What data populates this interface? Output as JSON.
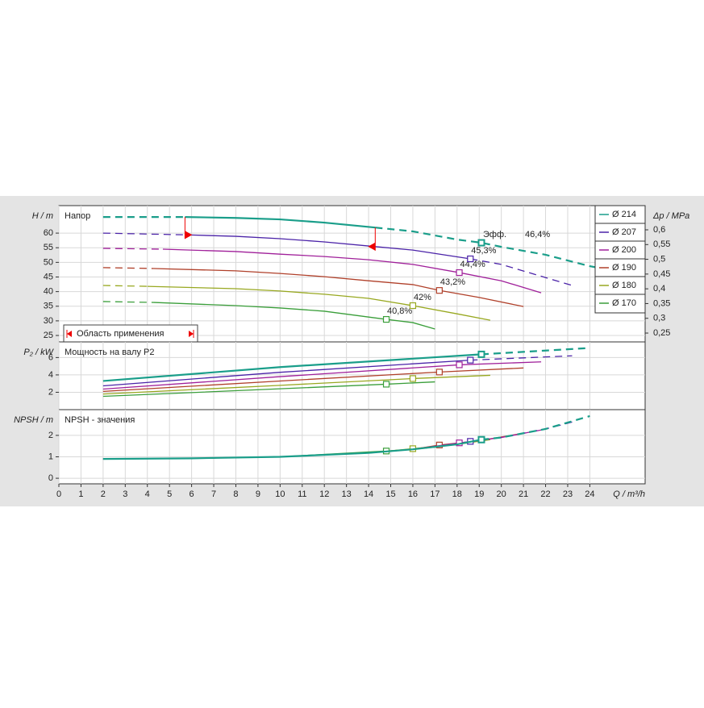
{
  "chart_data": [
    {
      "type": "line",
      "title": "Напор",
      "y_label": "H / m",
      "y2_label": "Δp / MPa",
      "range_label": "Область применения",
      "efficiency_prefix": "Эфф.",
      "xlim": [
        0,
        26.5
      ],
      "xticks": [
        0,
        1,
        2,
        3,
        4,
        5,
        6,
        7,
        8,
        9,
        10,
        11,
        12,
        13,
        14,
        15,
        16,
        17,
        18,
        19,
        20,
        21,
        22,
        23,
        24
      ],
      "ylim": [
        22.8,
        69.4
      ],
      "yticks": [
        25,
        30,
        35,
        40,
        45,
        50,
        55,
        60
      ],
      "y2lim": [
        0.22,
        0.682
      ],
      "y2ticks": [
        {
          "value": 0.25,
          "label": "0,25"
        },
        {
          "value": 0.3,
          "label": "0,3"
        },
        {
          "value": 0.35,
          "label": "0,35"
        },
        {
          "value": 0.4,
          "label": "0,4"
        },
        {
          "value": 0.45,
          "label": "0,45"
        },
        {
          "value": 0.5,
          "label": "0,5"
        },
        {
          "value": 0.55,
          "label": "0,55"
        },
        {
          "value": 0.6,
          "label": "0,6"
        }
      ],
      "grid": true,
      "legend": "top-right",
      "series": [
        {
          "name": "Ø 214",
          "color": "#1a9e8a",
          "x": [
            2,
            5.7,
            8,
            10,
            12,
            14.3,
            16,
            18,
            19.1,
            20,
            22,
            24,
            26.3
          ],
          "values": [
            65.5,
            65.5,
            65.2,
            64.7,
            63.6,
            61.9,
            60.6,
            57.8,
            56.7,
            55.3,
            52.6,
            48.7,
            45.4
          ],
          "solid_range": [
            5.7,
            14.3
          ],
          "duty_point": {
            "x": 19.1,
            "value": 56.7,
            "label": "46,4%"
          }
        },
        {
          "name": "Ø 207",
          "color": "#4b23a8",
          "x": [
            2,
            5.8,
            8,
            10,
            12,
            14,
            16,
            18.6,
            20,
            22,
            23.2
          ],
          "values": [
            60,
            59.4,
            58.9,
            58.1,
            57,
            55.6,
            54.2,
            51.2,
            49.3,
            44.8,
            42.1
          ],
          "solid_range": [
            5.8,
            18.6
          ],
          "duty_point": {
            "x": 18.6,
            "value": 51.2,
            "label": "45,3%"
          }
        },
        {
          "name": "Ø 200",
          "color": "#a0209a",
          "x": [
            2,
            4.7,
            8,
            10,
            12,
            14,
            16,
            18.1,
            20,
            21.8
          ],
          "values": [
            54.8,
            54.5,
            53.7,
            52.8,
            52,
            50.9,
            49.3,
            46.5,
            43.7,
            39.6
          ],
          "solid_range": [
            4.7,
            21.8
          ],
          "duty_point": {
            "x": 18.1,
            "value": 46.5,
            "label": "44,4%"
          }
        },
        {
          "name": "Ø 190",
          "color": "#b0402a",
          "x": [
            2,
            4.3,
            8,
            10,
            12,
            14,
            16,
            17.2,
            19,
            21
          ],
          "values": [
            48.2,
            47.9,
            47.1,
            46.2,
            45.1,
            43.7,
            42.4,
            40.4,
            38,
            34.9
          ],
          "solid_range": [
            4.3,
            21
          ],
          "duty_point": {
            "x": 17.2,
            "value": 40.4,
            "label": "43,2%"
          }
        },
        {
          "name": "Ø 180",
          "color": "#98a820",
          "x": [
            2,
            4,
            8,
            10,
            12,
            14,
            16,
            18,
            19.5
          ],
          "values": [
            42.1,
            41.8,
            41,
            40.2,
            39.1,
            37.7,
            35.2,
            32.4,
            30.2
          ],
          "solid_range": [
            4,
            19.5
          ],
          "duty_point": {
            "x": 16,
            "value": 35.2,
            "label": "42%"
          }
        },
        {
          "name": "Ø 170",
          "color": "#3a9e3a",
          "x": [
            2,
            4.3,
            8,
            10,
            12,
            14.8,
            16,
            17
          ],
          "values": [
            36.6,
            36.3,
            35.2,
            34.4,
            33.3,
            30.5,
            29.4,
            27.2
          ],
          "solid_range": [
            4.3,
            17
          ],
          "duty_point": {
            "x": 14.8,
            "value": 30.5,
            "label": "40,8%"
          }
        }
      ]
    },
    {
      "type": "line",
      "title": "Мощность на валу P2",
      "y_label": "P₂ / kW",
      "xlim": [
        0,
        26.5
      ],
      "xticks": [
        0,
        1,
        2,
        3,
        4,
        5,
        6,
        7,
        8,
        9,
        10,
        11,
        12,
        13,
        14,
        15,
        16,
        17,
        18,
        19,
        20,
        21,
        22,
        23,
        24
      ],
      "ylim": [
        0,
        7.8
      ],
      "yticks": [
        2,
        4,
        6
      ],
      "grid": true,
      "series": [
        {
          "color": "#1a9e8a",
          "x": [
            2,
            10,
            19.1,
            24
          ],
          "values": [
            3.3,
            4.9,
            6.37,
            7.1
          ],
          "solid_range": [
            2,
            19.1
          ],
          "duty_point": {
            "x": 19.1,
            "value": 6.37
          }
        },
        {
          "color": "#4b23a8",
          "x": [
            2,
            10,
            18.6,
            23.2
          ],
          "values": [
            2.74,
            4.3,
            5.7,
            6.2
          ],
          "solid_range": [
            2,
            18.6
          ],
          "duty_point": {
            "x": 18.6,
            "value": 5.7
          }
        },
        {
          "color": "#a0209a",
          "x": [
            2,
            10,
            18.1,
            21.8
          ],
          "values": [
            2.37,
            3.8,
            5.16,
            5.5
          ],
          "solid_range": [
            2,
            21.8
          ],
          "duty_point": {
            "x": 18.1,
            "value": 5.16
          }
        },
        {
          "color": "#b0402a",
          "x": [
            2,
            10,
            17.2,
            21
          ],
          "values": [
            2.1,
            3.3,
            4.33,
            4.8
          ],
          "solid_range": [
            2,
            21
          ],
          "duty_point": {
            "x": 17.2,
            "value": 4.33
          }
        },
        {
          "color": "#98a820",
          "x": [
            2,
            10,
            16,
            19.5
          ],
          "values": [
            1.8,
            2.8,
            3.58,
            3.95
          ],
          "solid_range": [
            2,
            19.5
          ],
          "duty_point": {
            "x": 16,
            "value": 3.58
          }
        },
        {
          "color": "#3a9e3a",
          "x": [
            2,
            10,
            14.8,
            17
          ],
          "values": [
            1.53,
            2.4,
            2.93,
            3.2
          ],
          "solid_range": [
            2,
            17
          ],
          "duty_point": {
            "x": 14.8,
            "value": 2.93
          }
        }
      ]
    },
    {
      "type": "line",
      "title": "NPSH - значения",
      "y_label": "NPSH / m",
      "x_label": "Q / m³/h",
      "xlim": [
        0,
        26.5
      ],
      "xticks": [
        0,
        1,
        2,
        3,
        4,
        5,
        6,
        7,
        8,
        9,
        10,
        11,
        12,
        13,
        14,
        15,
        16,
        17,
        18,
        19,
        20,
        21,
        22,
        23,
        24
      ],
      "ylim": [
        -0.26,
        3.2
      ],
      "yticks": [
        0,
        1,
        2
      ],
      "grid": true,
      "series": [
        {
          "color": "#1a9e8a",
          "x": [
            2,
            6,
            10,
            14,
            16,
            18,
            19.1,
            20,
            22,
            24
          ],
          "values": [
            0.9,
            0.93,
            1.0,
            1.18,
            1.35,
            1.58,
            1.8,
            1.9,
            2.3,
            2.9
          ],
          "solid_range": [
            2,
            19.1
          ],
          "duty_point": {
            "x": 19.1,
            "value": 1.8
          }
        },
        {
          "color": "#4b23a8",
          "x": [
            2,
            6,
            10,
            14,
            16,
            18,
            18.6,
            20,
            22,
            23.2
          ],
          "values": [
            0.9,
            0.93,
            1.0,
            1.18,
            1.35,
            1.58,
            1.72,
            1.9,
            2.3,
            2.62
          ],
          "solid_range": [
            2,
            18.6
          ],
          "duty_point": {
            "x": 18.6,
            "value": 1.72
          }
        },
        {
          "color": "#a0209a",
          "x": [
            2,
            6,
            10,
            14,
            16,
            18.1,
            20,
            21.8
          ],
          "values": [
            0.9,
            0.93,
            1.0,
            1.18,
            1.35,
            1.65,
            1.9,
            2.25
          ],
          "solid_range": [
            2,
            21.8
          ],
          "duty_point": {
            "x": 18.1,
            "value": 1.65
          }
        },
        {
          "color": "#b0402a",
          "x": [
            2,
            6,
            10,
            14,
            16,
            17.2,
            19,
            21
          ],
          "values": [
            0.9,
            0.93,
            1.0,
            1.18,
            1.35,
            1.55,
            1.75,
            2.1
          ],
          "solid_range": [
            2,
            21
          ],
          "duty_point": {
            "x": 17.2,
            "value": 1.55
          }
        },
        {
          "color": "#98a820",
          "x": [
            2,
            6,
            10,
            14,
            16,
            18,
            19.5
          ],
          "values": [
            0.9,
            0.93,
            1.0,
            1.18,
            1.38,
            1.58,
            1.8
          ],
          "solid_range": [
            2,
            19.5
          ],
          "duty_point": {
            "x": 16,
            "value": 1.38
          }
        },
        {
          "color": "#3a9e3a",
          "x": [
            2,
            6,
            10,
            14.8,
            16,
            17
          ],
          "values": [
            0.9,
            0.93,
            1.0,
            1.27,
            1.35,
            1.45
          ],
          "solid_range": [
            2,
            17
          ],
          "duty_point": {
            "x": 14.8,
            "value": 1.27
          }
        }
      ]
    }
  ]
}
